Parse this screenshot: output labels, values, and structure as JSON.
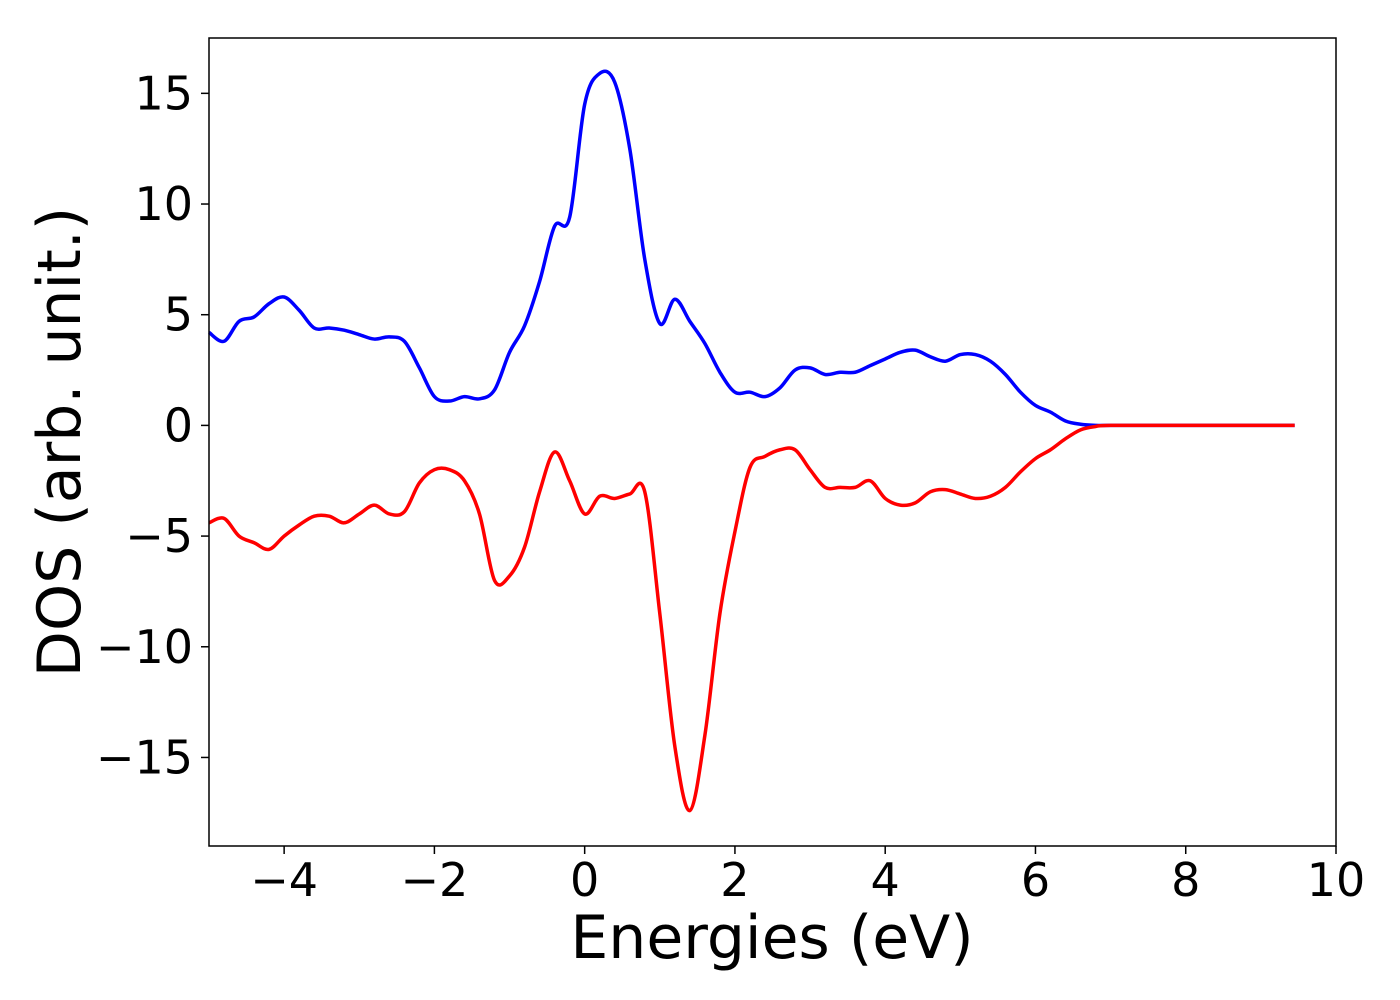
{
  "chart_data": {
    "type": "line",
    "xlabel": "Energies (eV)",
    "ylabel": "DOS (arb. unit.)",
    "xlim": [
      -5,
      10
    ],
    "ylim": [
      -19,
      17.5
    ],
    "xticks": [
      -4,
      -2,
      0,
      2,
      4,
      6,
      8,
      10
    ],
    "xtick_labels": [
      "−4",
      "−2",
      "0",
      "2",
      "4",
      "6",
      "8",
      "10"
    ],
    "yticks": [
      -15,
      -10,
      -5,
      0,
      5,
      10,
      15
    ],
    "ytick_labels": [
      "−15",
      "−10",
      "−5",
      "0",
      "5",
      "10",
      "15"
    ],
    "grid": false,
    "series": [
      {
        "color": "#0000ff",
        "points": [
          [
            -5.0,
            4.2
          ],
          [
            -4.8,
            3.8
          ],
          [
            -4.6,
            4.7
          ],
          [
            -4.4,
            4.9
          ],
          [
            -4.2,
            5.5
          ],
          [
            -4.0,
            5.8
          ],
          [
            -3.8,
            5.2
          ],
          [
            -3.6,
            4.4
          ],
          [
            -3.4,
            4.4
          ],
          [
            -3.2,
            4.3
          ],
          [
            -3.0,
            4.1
          ],
          [
            -2.8,
            3.9
          ],
          [
            -2.6,
            4.0
          ],
          [
            -2.4,
            3.8
          ],
          [
            -2.2,
            2.6
          ],
          [
            -2.0,
            1.3
          ],
          [
            -1.8,
            1.1
          ],
          [
            -1.6,
            1.3
          ],
          [
            -1.4,
            1.2
          ],
          [
            -1.2,
            1.6
          ],
          [
            -1.0,
            3.3
          ],
          [
            -0.8,
            4.5
          ],
          [
            -0.6,
            6.5
          ],
          [
            -0.4,
            9.0
          ],
          [
            -0.2,
            9.4
          ],
          [
            0.0,
            14.5
          ],
          [
            0.2,
            15.9
          ],
          [
            0.4,
            15.5
          ],
          [
            0.6,
            12.5
          ],
          [
            0.8,
            7.5
          ],
          [
            1.0,
            4.6
          ],
          [
            1.2,
            5.7
          ],
          [
            1.4,
            4.7
          ],
          [
            1.6,
            3.7
          ],
          [
            1.8,
            2.4
          ],
          [
            2.0,
            1.5
          ],
          [
            2.2,
            1.5
          ],
          [
            2.4,
            1.3
          ],
          [
            2.6,
            1.7
          ],
          [
            2.8,
            2.5
          ],
          [
            3.0,
            2.6
          ],
          [
            3.2,
            2.3
          ],
          [
            3.4,
            2.4
          ],
          [
            3.6,
            2.4
          ],
          [
            3.8,
            2.7
          ],
          [
            4.0,
            3.0
          ],
          [
            4.2,
            3.3
          ],
          [
            4.4,
            3.4
          ],
          [
            4.6,
            3.1
          ],
          [
            4.8,
            2.9
          ],
          [
            5.0,
            3.2
          ],
          [
            5.2,
            3.2
          ],
          [
            5.4,
            2.9
          ],
          [
            5.6,
            2.3
          ],
          [
            5.8,
            1.5
          ],
          [
            6.0,
            0.9
          ],
          [
            6.2,
            0.6
          ],
          [
            6.4,
            0.2
          ],
          [
            6.6,
            0.05
          ],
          [
            6.8,
            0.0
          ],
          [
            7.0,
            0.0
          ],
          [
            8.0,
            0.0
          ],
          [
            9.0,
            0.0
          ],
          [
            9.45,
            0.0
          ]
        ]
      },
      {
        "color": "#ff0000",
        "points": [
          [
            -5.0,
            -4.4
          ],
          [
            -4.8,
            -4.2
          ],
          [
            -4.6,
            -5.0
          ],
          [
            -4.4,
            -5.3
          ],
          [
            -4.2,
            -5.6
          ],
          [
            -4.0,
            -5.0
          ],
          [
            -3.8,
            -4.5
          ],
          [
            -3.6,
            -4.1
          ],
          [
            -3.4,
            -4.1
          ],
          [
            -3.2,
            -4.4
          ],
          [
            -3.0,
            -4.0
          ],
          [
            -2.8,
            -3.6
          ],
          [
            -2.6,
            -4.0
          ],
          [
            -2.4,
            -3.9
          ],
          [
            -2.2,
            -2.6
          ],
          [
            -2.0,
            -2.0
          ],
          [
            -1.8,
            -2.0
          ],
          [
            -1.6,
            -2.5
          ],
          [
            -1.4,
            -4.0
          ],
          [
            -1.2,
            -7.0
          ],
          [
            -1.0,
            -6.8
          ],
          [
            -0.8,
            -5.5
          ],
          [
            -0.6,
            -3.0
          ],
          [
            -0.4,
            -1.2
          ],
          [
            -0.2,
            -2.5
          ],
          [
            0.0,
            -4.0
          ],
          [
            0.2,
            -3.2
          ],
          [
            0.4,
            -3.3
          ],
          [
            0.6,
            -3.1
          ],
          [
            0.8,
            -3.0
          ],
          [
            1.0,
            -8.5
          ],
          [
            1.2,
            -14.5
          ],
          [
            1.4,
            -17.4
          ],
          [
            1.6,
            -14.0
          ],
          [
            1.8,
            -8.5
          ],
          [
            2.0,
            -4.8
          ],
          [
            2.2,
            -1.9
          ],
          [
            2.4,
            -1.4
          ],
          [
            2.6,
            -1.1
          ],
          [
            2.8,
            -1.1
          ],
          [
            3.0,
            -2.0
          ],
          [
            3.2,
            -2.8
          ],
          [
            3.4,
            -2.8
          ],
          [
            3.6,
            -2.8
          ],
          [
            3.8,
            -2.5
          ],
          [
            4.0,
            -3.3
          ],
          [
            4.2,
            -3.6
          ],
          [
            4.4,
            -3.5
          ],
          [
            4.6,
            -3.0
          ],
          [
            4.8,
            -2.9
          ],
          [
            5.0,
            -3.1
          ],
          [
            5.2,
            -3.3
          ],
          [
            5.4,
            -3.2
          ],
          [
            5.6,
            -2.8
          ],
          [
            5.8,
            -2.1
          ],
          [
            6.0,
            -1.5
          ],
          [
            6.2,
            -1.1
          ],
          [
            6.4,
            -0.6
          ],
          [
            6.6,
            -0.2
          ],
          [
            6.8,
            -0.05
          ],
          [
            7.0,
            0.0
          ],
          [
            8.0,
            0.0
          ],
          [
            9.0,
            0.0
          ],
          [
            9.45,
            0.0
          ]
        ]
      }
    ]
  }
}
